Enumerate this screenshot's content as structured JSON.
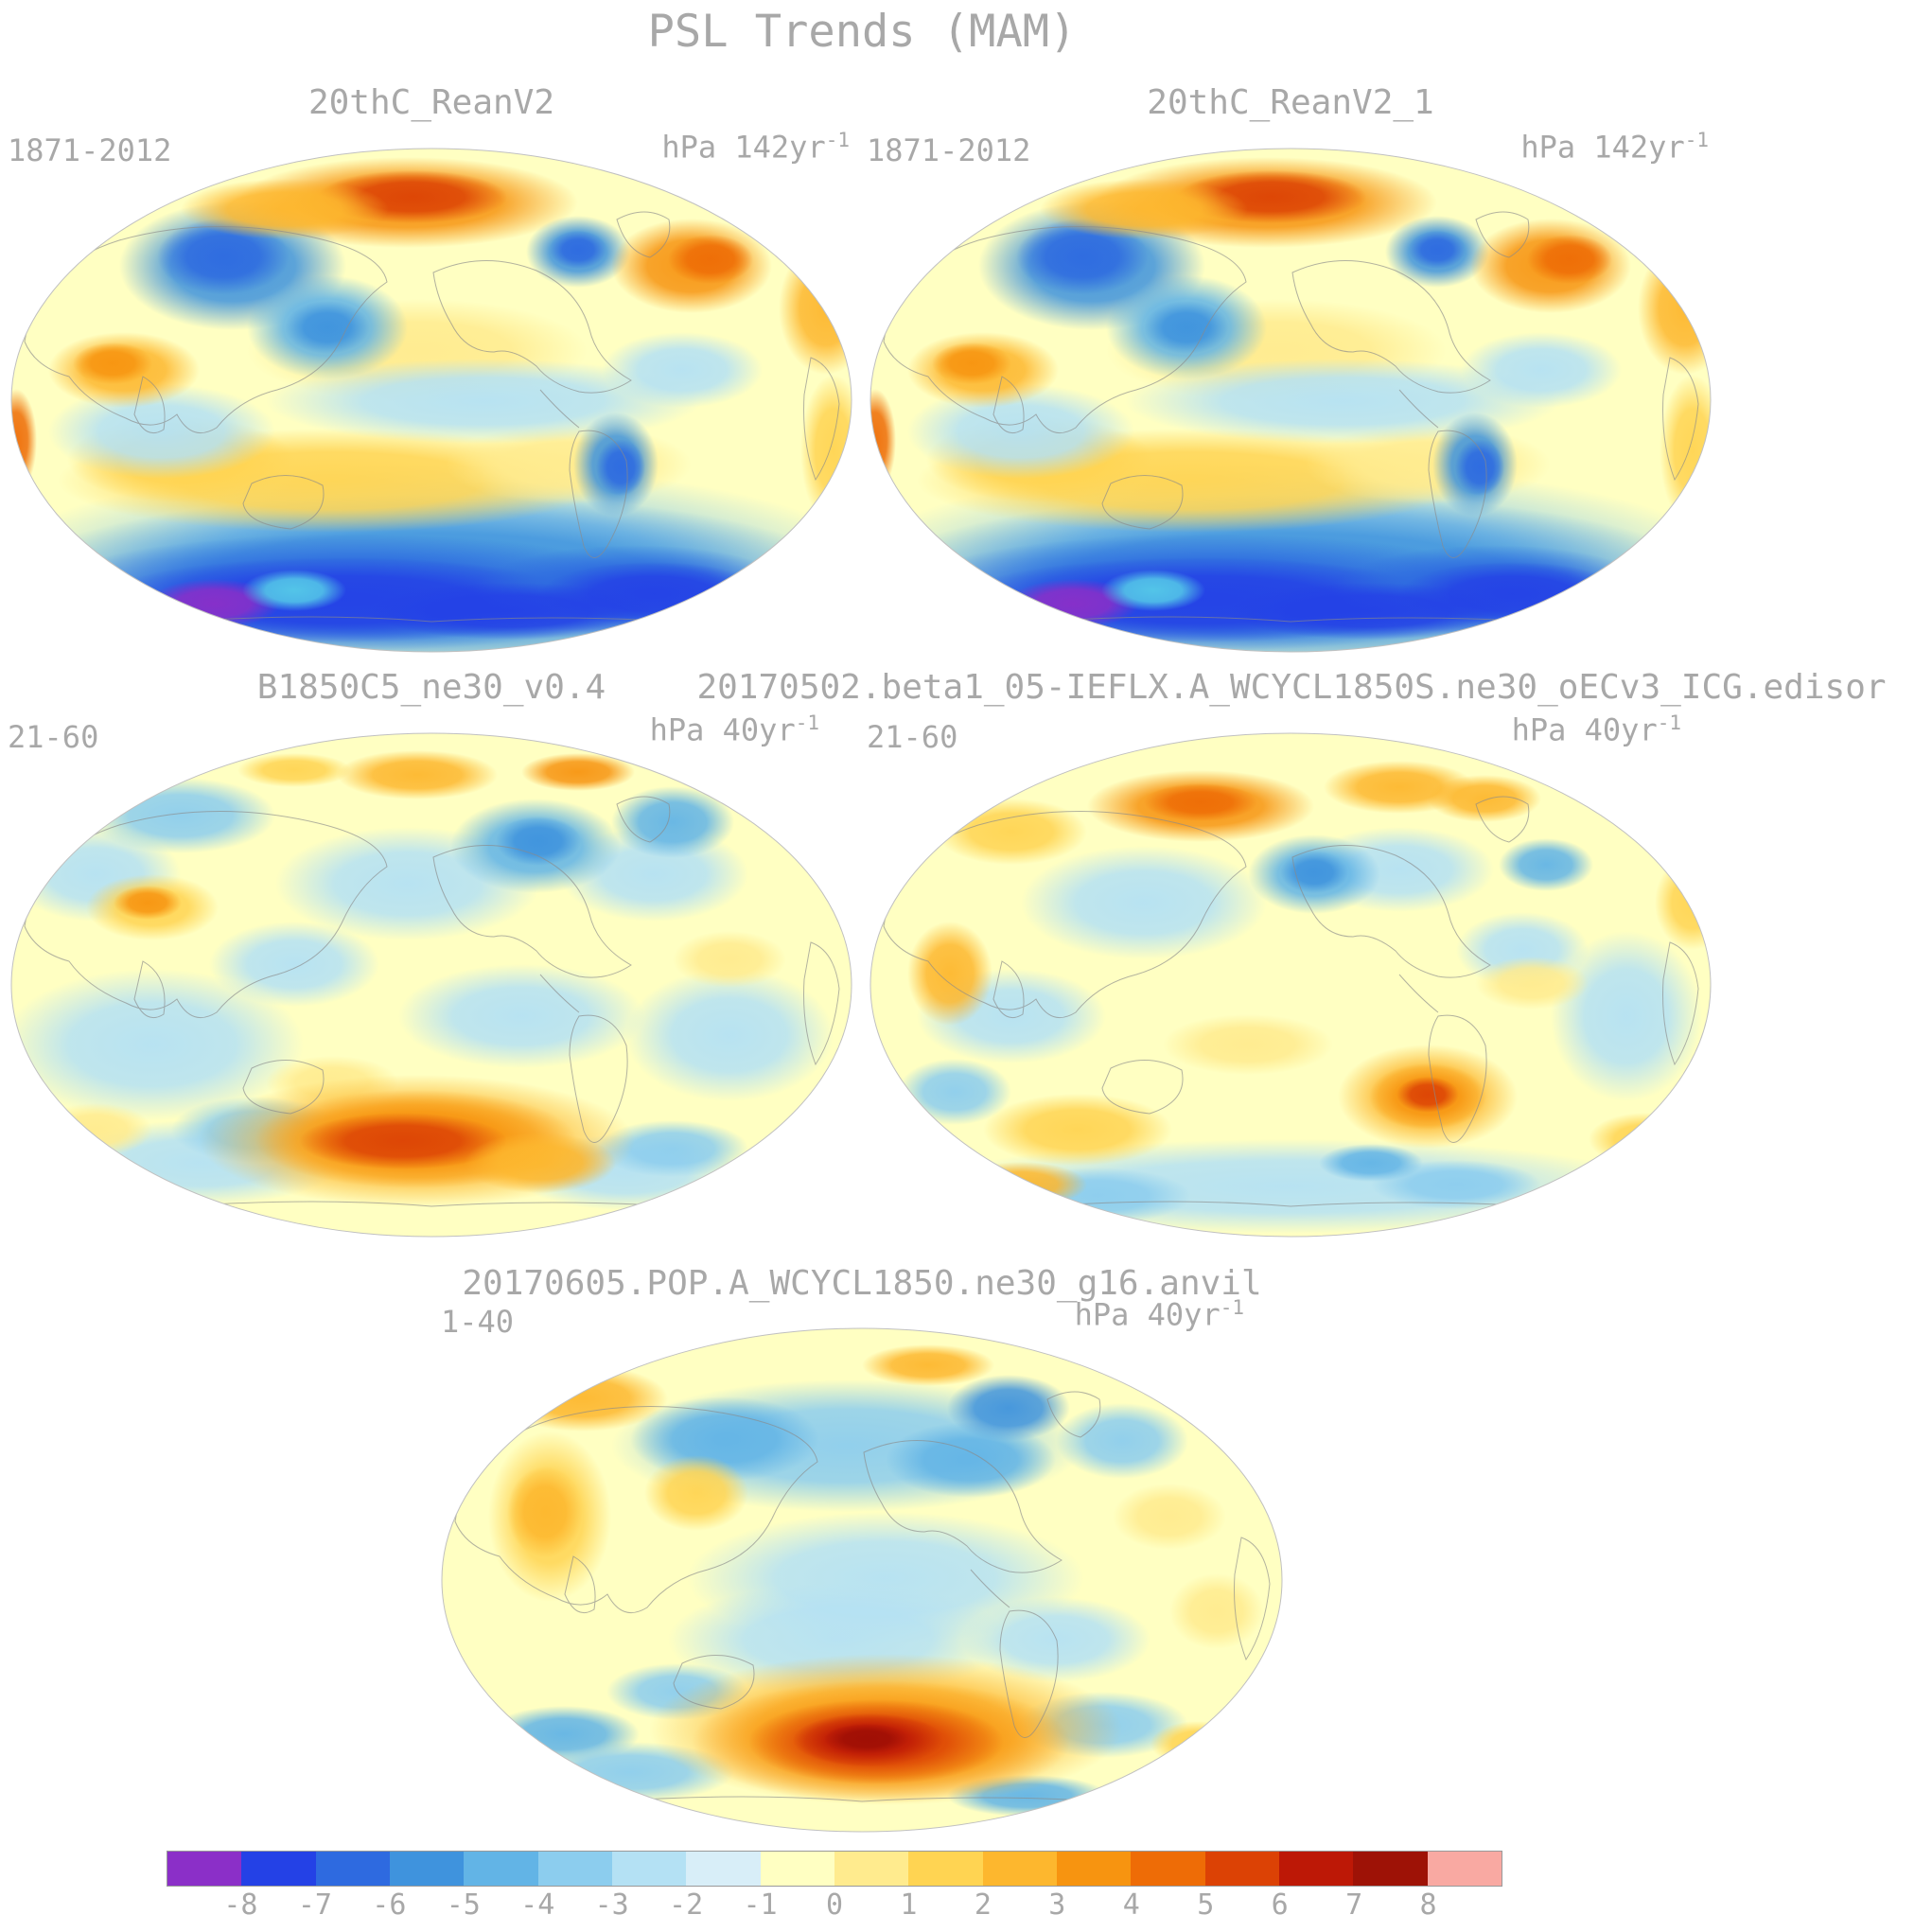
{
  "figure": {
    "title": "PSL Trends (MAM)"
  },
  "panels": [
    {
      "title": "20thC_ReanV2",
      "period": "1871-2012",
      "units_base": "hPa 142yr",
      "units_exp": "-1"
    },
    {
      "title": "20thC_ReanV2_1",
      "period": "1871-2012",
      "units_base": "hPa 142yr",
      "units_exp": "-1"
    },
    {
      "title": "B1850C5_ne30_v0.4",
      "period": "21-60",
      "units_base": "hPa 40yr",
      "units_exp": "-1"
    },
    {
      "title": "20170502.beta1_05-IEFLX.A_WCYCL1850S.ne30_oECv3_ICG.edisor",
      "period": "21-60",
      "units_base": "hPa 40yr",
      "units_exp": "-1"
    },
    {
      "title": "20170605.POP.A_WCYCL1850.ne30_g16.anvil",
      "period": "1-40",
      "units_base": "hPa 40yr",
      "units_exp": "-1"
    }
  ],
  "colorbar": {
    "labels": [
      "-8",
      "-7",
      "-6",
      "-5",
      "-4",
      "-3",
      "-2",
      "-1",
      "0",
      "1",
      "2",
      "3",
      "4",
      "5",
      "6",
      "7",
      "8"
    ],
    "colors": [
      "#8b2fc8",
      "#2441e6",
      "#2e6ae0",
      "#3f93dd",
      "#62b4e6",
      "#8ccdee",
      "#b4e1f4",
      "#d8eef8",
      "#ffffc2",
      "#ffeb8e",
      "#ffd452",
      "#fdb72e",
      "#f79410",
      "#ee6c06",
      "#dc4205",
      "#bd1806",
      "#f9a9a2"
    ]
  },
  "chart_data": {
    "type": "heatmap",
    "title": "PSL Trends (MAM)",
    "variable": "Sea level pressure trend maps (global, Robinson projection, Pacific-centered)",
    "colorbar": {
      "boundaries": [
        -8,
        -7,
        -6,
        -5,
        -4,
        -3,
        -2,
        -1,
        0,
        1,
        2,
        3,
        4,
        5,
        6,
        7,
        8
      ],
      "colors": [
        "#8b2fc8",
        "#2441e6",
        "#2e6ae0",
        "#3f93dd",
        "#62b4e6",
        "#8ccdee",
        "#b4e1f4",
        "#d8eef8",
        "#ffffc2",
        "#ffeb8e",
        "#ffd452",
        "#fdb72e",
        "#f79410",
        "#ee6c06",
        "#dc4205",
        "#bd1806",
        "#f9a9a2"
      ],
      "units_note": "hPa per stated period"
    },
    "panels": [
      {
        "name": "20thC_ReanV2",
        "period": "1871-2012",
        "units": "hPa 142yr-1",
        "features": [
          "strong negative trends -5 to -9 over Southern Ocean and Antarctica with purple minimum near -9",
          "positive trends +4 to +6 over central Arctic",
          "negative trends -3 to -6 over North Pacific",
          "weak positive trends +1 to +3 across mid-latitude band",
          "local negative pocket near southern South America",
          "orange positive patch over northern Europe/Greenland sector"
        ]
      },
      {
        "name": "20thC_ReanV2_1",
        "period": "1871-2012",
        "units": "hPa 142yr-1",
        "features": [
          "pattern nearly identical to 20thC_ReanV2"
        ]
      },
      {
        "name": "B1850C5_ne30_v0.4",
        "period": "21-60",
        "units": "hPa 40yr-1",
        "features": [
          "weak trends -1 to +1 over most of the globe",
          "positive blob +3 to +5 over far South Atlantic / Southern Ocean sector",
          "scattered -1 to -3 patches at high northern latitudes",
          "small positive spot over western Asia"
        ]
      },
      {
        "name": "20170502.beta1_05-IEFLX.A_WCYCL1850S.ne30_oECv3_ICG.edisor",
        "period": "21-60",
        "units": "hPa 40yr-1",
        "features": [
          "weak trends overall",
          "positive +2 to +4 spot in South Atlantic mid-latitudes",
          "+1 to +3 patches across Arctic rim",
          "light negative band in southern high latitudes"
        ]
      },
      {
        "name": "20170605.POP.A_WCYCL1850.ne30_g16.anvil",
        "period": "1-40",
        "units": "hPa 40yr-1",
        "features": [
          "strong positive +5 to +8 maximum over South Atlantic / Southern Ocean sector (dark red core)",
          "-1 to -3 band across northern mid-to-high latitudes",
          "orange positive streaks over Asia",
          "weak trends over tropical Pacific"
        ]
      }
    ]
  }
}
